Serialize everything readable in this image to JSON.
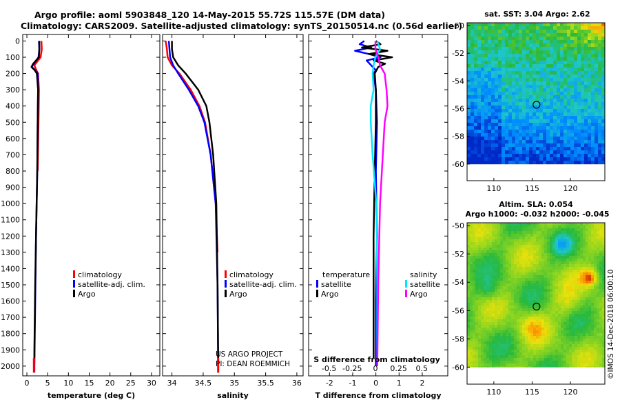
{
  "header": {
    "line1": "Argo profile: aoml 5903848_120 14-May-2015 55.72S 115.57E (DM data)",
    "line2": "Climatology: CARS2009. Satellite-adjusted climatology: synTS_20150514.nc (0.56d earlier)"
  },
  "colors": {
    "climatology": "#ff0000",
    "satellite": "#0000ff",
    "argo": "#000000",
    "sat_salinity": "#00e5ff",
    "argo_salinity": "#ff00ff"
  },
  "depth_ticks": [
    "0",
    "100",
    "200",
    "300",
    "400",
    "500",
    "600",
    "700",
    "800",
    "900",
    "1000",
    "1100",
    "1200",
    "1300",
    "1400",
    "1500",
    "1600",
    "1700",
    "1800",
    "1900",
    "2000"
  ],
  "chart_data": [
    {
      "type": "line",
      "name": "temperature",
      "xlabel": "temperature (deg C)",
      "xlim": [
        -1,
        32
      ],
      "ylim": [
        2060,
        -40
      ],
      "xticks": [
        0,
        5,
        10,
        15,
        20,
        25,
        30
      ],
      "xtick_labels": [
        "0",
        "5",
        "10",
        "15",
        "20",
        "25",
        "30"
      ],
      "series": [
        {
          "name": "climatology",
          "depth": [
            0,
            50,
            100,
            150,
            180,
            200,
            300,
            500,
            800
          ],
          "values": [
            3.5,
            3.6,
            3.3,
            1.8,
            2.3,
            2.7,
            2.9,
            2.8,
            2.6
          ]
        },
        {
          "name": "satellite-adj. clim.",
          "depth": [
            0,
            50,
            100,
            150,
            160,
            180,
            200,
            300,
            500,
            800,
            1200,
            1600,
            2000,
            2040
          ],
          "values": [
            2.9,
            3.0,
            2.8,
            1.4,
            1.2,
            2.0,
            2.6,
            2.7,
            2.6,
            2.5,
            2.2,
            2.0,
            1.8,
            1.8
          ]
        },
        {
          "name": "Argo",
          "depth": [
            0,
            50,
            100,
            140,
            160,
            180,
            200,
            300,
            500,
            800,
            1200,
            1500,
            1900,
            1950
          ],
          "values": [
            3.0,
            3.0,
            2.9,
            1.5,
            1.1,
            1.9,
            2.4,
            2.7,
            2.6,
            2.5,
            2.2,
            2.0,
            1.8,
            1.8
          ]
        },
        {
          "name": "climatology deep",
          "depth": [
            1950,
            2040
          ],
          "values": [
            1.7,
            1.7
          ]
        }
      ],
      "legend": [
        "climatology",
        "satellite-adj. clim.",
        "Argo"
      ]
    },
    {
      "type": "line",
      "name": "salinity",
      "xlabel": "salinity",
      "xlim": [
        33.85,
        36.1
      ],
      "ylim": [
        2060,
        -40
      ],
      "xticks": [
        34,
        34.5,
        35,
        35.5,
        36
      ],
      "xtick_labels": [
        "34",
        "34.5",
        "35",
        "35.5",
        "36"
      ],
      "series": [
        {
          "name": "climatology",
          "depth": [
            0,
            50,
            100,
            150,
            200,
            300,
            400,
            500,
            700,
            1000,
            1300
          ],
          "values": [
            33.9,
            33.92,
            33.93,
            34.0,
            34.12,
            34.3,
            34.44,
            34.53,
            34.62,
            34.7,
            34.73
          ]
        },
        {
          "name": "satellite-adj. clim.",
          "depth": [
            0,
            50,
            100,
            150,
            200,
            300,
            400,
            500,
            700,
            1000,
            1500,
            2000,
            2040
          ],
          "values": [
            33.95,
            33.96,
            33.97,
            34.02,
            34.1,
            34.27,
            34.42,
            34.52,
            34.62,
            34.7,
            34.73,
            34.74,
            34.74
          ]
        },
        {
          "name": "Argo",
          "depth": [
            0,
            50,
            100,
            150,
            200,
            300,
            400,
            500,
            700,
            1000,
            1500,
            1950
          ],
          "values": [
            34.0,
            34.0,
            34.02,
            34.1,
            34.22,
            34.42,
            34.55,
            34.6,
            34.66,
            34.71,
            34.73,
            34.74
          ]
        },
        {
          "name": "climatology deep",
          "depth": [
            1950,
            2040
          ],
          "values": [
            34.74,
            34.74
          ]
        }
      ],
      "legend": [
        "climatology",
        "satellite-adj. clim.",
        "Argo"
      ],
      "annotation": [
        "US ARGO PROJECT",
        "PI: DEAN ROEMMICH"
      ]
    },
    {
      "type": "line",
      "name": "difference from climatology",
      "xlabel": "T difference from climatology",
      "xlabel_top": "S difference from climatology",
      "xlim": [
        -2.9,
        3.1
      ],
      "ylim": [
        2060,
        -40
      ],
      "xticks": [
        -2,
        -1,
        0,
        1,
        2
      ],
      "xtick_labels": [
        "-2",
        "-1",
        "0",
        "1",
        "2"
      ],
      "xticks_s": [
        -0.5,
        -0.25,
        0,
        0.25,
        0.5
      ],
      "xtick_labels_s": [
        "-0.5",
        "-0.25",
        "0",
        "0.25",
        "0.5"
      ],
      "series": [
        {
          "name": "temperature satellite",
          "depth": [
            0,
            20,
            40,
            60,
            80,
            100,
            120,
            150,
            180,
            200,
            300,
            500,
            800,
            1200,
            1600,
            2000
          ],
          "values": [
            -0.5,
            -0.7,
            -0.2,
            -0.9,
            -0.3,
            0.2,
            -0.4,
            -0.2,
            0.0,
            -0.1,
            0.0,
            0.05,
            0.0,
            0.05,
            0.0,
            0.0
          ]
        },
        {
          "name": "temperature Argo",
          "depth": [
            0,
            20,
            40,
            60,
            80,
            100,
            120,
            140,
            160,
            200,
            300,
            500,
            800,
            1200,
            1600,
            1950
          ],
          "values": [
            0.0,
            0.2,
            -0.6,
            0.5,
            -0.3,
            0.7,
            -0.1,
            0.4,
            0.1,
            -0.05,
            0.0,
            0.0,
            -0.05,
            -0.1,
            -0.1,
            -0.1
          ]
        },
        {
          "name": "salinity satellite",
          "depth": [
            0,
            50,
            100,
            150,
            200,
            300,
            400,
            500,
            700,
            1000,
            1500,
            2000
          ],
          "values": [
            0.02,
            0.05,
            0.0,
            -0.02,
            -0.03,
            -0.02,
            -0.05,
            -0.05,
            -0.03,
            0.01,
            0.02,
            0.02
          ]
        },
        {
          "name": "salinity Argo",
          "depth": [
            0,
            50,
            100,
            150,
            200,
            300,
            400,
            500,
            700,
            1000,
            1500,
            2000
          ],
          "values": [
            0.0,
            0.0,
            0.03,
            0.05,
            0.1,
            0.12,
            0.13,
            0.1,
            0.08,
            0.05,
            0.03,
            0.02
          ]
        }
      ],
      "legend_t": {
        "title": "temperature",
        "items": [
          "satellite",
          "Argo"
        ]
      },
      "legend_s": {
        "title": "salinity",
        "items": [
          "satellite",
          "Argo"
        ]
      }
    },
    {
      "type": "heatmap",
      "name": "sat_sst_map",
      "title": "sat. SST: 3.04 Argo: 2.62",
      "xlim": [
        106.5,
        124.5
      ],
      "ylim": [
        -61.2,
        -49.8
      ],
      "xticks": [
        110,
        115,
        120
      ],
      "xtick_labels": [
        "110",
        "115",
        "120"
      ],
      "yticks": [
        -50,
        -52,
        -54,
        -56,
        -58,
        -60
      ],
      "ytick_labels": [
        "-50",
        "-52",
        "-54",
        "-56",
        "-58",
        "-60"
      ],
      "marker": {
        "lon": 115.57,
        "lat": -55.72
      },
      "data_bottom_lat": -60
    },
    {
      "type": "heatmap",
      "name": "sla_map",
      "title": "Altim. SLA: 0.054",
      "subtitle": "Argo h1000: -0.032 h2000: -0.045",
      "xlim": [
        106.5,
        124.5
      ],
      "ylim": [
        -61.2,
        -49.8
      ],
      "xticks": [
        110,
        115,
        120
      ],
      "xtick_labels": [
        "110",
        "115",
        "120"
      ],
      "yticks": [
        -50,
        -52,
        -54,
        -56,
        -58,
        -60
      ],
      "ytick_labels": [
        "-50",
        "-52",
        "-54",
        "-56",
        "-58",
        "-60"
      ],
      "marker": {
        "lon": 115.57,
        "lat": -55.72
      },
      "data_bottom_lat": -60
    }
  ],
  "watermark": "©IMOS 14-Dec-2018 06:00:10"
}
